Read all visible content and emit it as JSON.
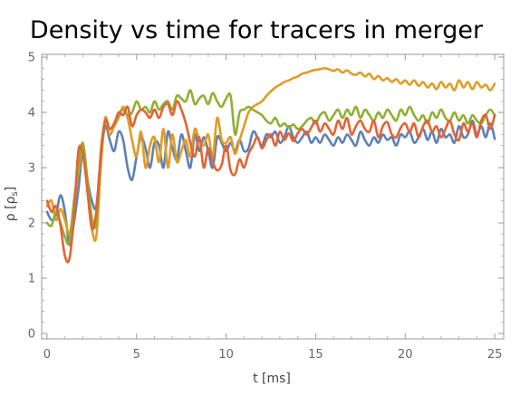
{
  "chart_data": {
    "type": "line",
    "title": "Density vs time for tracers in merger",
    "xlabel": "t [ms]",
    "ylabel": "ρ [ρs]",
    "ylabel_main": "ρ [ρ",
    "ylabel_sub": "s",
    "ylabel_end": "]",
    "xlim": [
      -0.3,
      25.5
    ],
    "ylim": [
      -0.1,
      5.05
    ],
    "xticks": [
      0,
      5,
      10,
      15,
      20,
      25
    ],
    "yticks": [
      0,
      1,
      2,
      3,
      4,
      5
    ],
    "xtick_labels": [
      "0",
      "5",
      "10",
      "15",
      "20",
      "25"
    ],
    "ytick_labels": [
      "0",
      "1",
      "2",
      "3",
      "4",
      "5"
    ],
    "grid": false,
    "series": [
      {
        "color": "#5E81B5",
        "x": [
          0,
          0.25,
          0.5,
          0.75,
          1,
          1.25,
          1.5,
          1.75,
          2,
          2.25,
          2.5,
          2.75,
          3,
          3.25,
          3.5,
          3.75,
          4,
          4.25,
          4.5,
          4.75,
          5,
          5.25,
          5.5,
          5.75,
          6,
          6.25,
          6.5,
          6.75,
          7,
          7.25,
          7.5,
          7.75,
          8,
          8.25,
          8.5,
          8.75,
          9,
          9.25,
          9.5,
          9.75,
          10,
          10.25,
          10.5,
          10.75,
          11,
          11.25,
          11.5,
          11.75,
          12,
          12.25,
          12.5,
          12.75,
          13,
          13.25,
          13.5,
          13.75,
          14,
          14.25,
          14.5,
          14.75,
          15,
          15.25,
          15.5,
          15.75,
          16,
          16.25,
          16.5,
          16.75,
          17,
          17.25,
          17.5,
          17.75,
          18,
          18.25,
          18.5,
          18.75,
          19,
          19.25,
          19.5,
          19.75,
          20,
          20.25,
          20.5,
          20.75,
          21,
          21.25,
          21.5,
          21.75,
          22,
          22.25,
          22.5,
          22.75,
          23,
          23.25,
          23.5,
          23.75,
          24,
          24.25,
          24.5,
          24.75,
          25
        ],
        "y": [
          2.2,
          2.05,
          2.15,
          2.5,
          2.2,
          1.6,
          2.0,
          2.6,
          3.3,
          2.8,
          2.4,
          2.3,
          3.2,
          3.75,
          3.5,
          3.3,
          3.65,
          3.5,
          3.0,
          2.78,
          3.2,
          3.55,
          3.35,
          3.0,
          3.45,
          3.4,
          3.0,
          3.65,
          3.35,
          3.15,
          3.6,
          3.3,
          3.0,
          3.6,
          3.3,
          3.55,
          3.3,
          3.0,
          3.55,
          3.45,
          3.3,
          3.45,
          3.3,
          3.5,
          3.3,
          3.35,
          3.65,
          3.55,
          3.4,
          3.6,
          3.55,
          3.65,
          3.45,
          3.55,
          3.75,
          3.55,
          3.45,
          3.55,
          3.65,
          3.45,
          3.55,
          3.45,
          3.6,
          3.5,
          3.4,
          3.55,
          3.45,
          3.6,
          3.5,
          3.4,
          3.65,
          3.5,
          3.4,
          3.55,
          3.45,
          3.6,
          3.5,
          3.55,
          3.4,
          3.6,
          3.55,
          3.65,
          3.45,
          3.55,
          3.7,
          3.5,
          3.65,
          3.45,
          3.7,
          3.55,
          3.6,
          3.45,
          3.75,
          3.55,
          3.6,
          3.85,
          3.6,
          3.75,
          3.55,
          3.8,
          3.52
        ]
      },
      {
        "color": "#E19C24",
        "x": [
          0,
          0.25,
          0.5,
          0.75,
          1,
          1.25,
          1.5,
          1.75,
          2,
          2.25,
          2.5,
          2.75,
          3,
          3.25,
          3.5,
          3.75,
          4,
          4.25,
          4.5,
          4.75,
          5,
          5.25,
          5.5,
          5.75,
          6,
          6.25,
          6.5,
          6.75,
          7,
          7.25,
          7.5,
          7.75,
          8,
          8.25,
          8.5,
          8.75,
          9,
          9.25,
          9.5,
          9.75,
          10,
          10.25,
          10.5,
          10.75,
          11,
          11.25,
          11.5,
          11.75,
          12,
          12.25,
          12.5,
          12.75,
          13,
          13.25,
          13.5,
          13.75,
          14,
          14.25,
          14.5,
          14.75,
          15,
          15.25,
          15.5,
          15.75,
          16,
          16.25,
          16.5,
          16.75,
          17,
          17.25,
          17.5,
          17.75,
          18,
          18.25,
          18.5,
          18.75,
          19,
          19.25,
          19.5,
          19.75,
          20,
          20.25,
          20.5,
          20.75,
          21,
          21.25,
          21.5,
          21.75,
          22,
          22.25,
          22.5,
          22.75,
          23,
          23.25,
          23.5,
          23.75,
          24,
          24.25,
          24.5,
          24.75,
          25
        ],
        "y": [
          2.3,
          2.4,
          2.05,
          2.25,
          2.05,
          1.8,
          2.3,
          2.9,
          3.35,
          2.6,
          1.9,
          1.75,
          3.0,
          3.9,
          3.6,
          3.75,
          3.9,
          4.1,
          3.9,
          3.5,
          3.2,
          3.65,
          3.0,
          3.4,
          3.55,
          3.1,
          3.7,
          3.0,
          3.6,
          3.1,
          3.3,
          3.5,
          3.2,
          3.7,
          3.5,
          3.4,
          3.6,
          3.2,
          3.9,
          3.5,
          3.45,
          3.55,
          3.25,
          3.5,
          3.75,
          4.0,
          4.1,
          4.15,
          4.2,
          4.3,
          4.38,
          4.45,
          4.5,
          4.55,
          4.58,
          4.62,
          4.65,
          4.7,
          4.72,
          4.75,
          4.77,
          4.78,
          4.8,
          4.78,
          4.75,
          4.78,
          4.72,
          4.76,
          4.7,
          4.68,
          4.72,
          4.65,
          4.7,
          4.6,
          4.66,
          4.58,
          4.62,
          4.55,
          4.6,
          4.52,
          4.58,
          4.5,
          4.58,
          4.48,
          4.55,
          4.45,
          4.52,
          4.42,
          4.55,
          4.45,
          4.52,
          4.4,
          4.58,
          4.45,
          4.55,
          4.42,
          4.55,
          4.45,
          4.5,
          4.4,
          4.52
        ]
      },
      {
        "color": "#8FB032",
        "x": [
          0,
          0.25,
          0.5,
          0.75,
          1,
          1.25,
          1.5,
          1.75,
          2,
          2.25,
          2.5,
          2.75,
          3,
          3.25,
          3.5,
          3.75,
          4,
          4.25,
          4.5,
          4.75,
          5,
          5.25,
          5.5,
          5.75,
          6,
          6.25,
          6.5,
          6.75,
          7,
          7.25,
          7.5,
          7.75,
          8,
          8.25,
          8.5,
          8.75,
          9,
          9.25,
          9.5,
          9.75,
          10,
          10.25,
          10.5,
          10.75,
          11,
          11.25,
          11.5,
          11.75,
          12,
          12.25,
          12.5,
          12.75,
          13,
          13.25,
          13.5,
          13.75,
          14,
          14.25,
          14.5,
          14.75,
          15,
          15.25,
          15.5,
          15.75,
          16,
          16.25,
          16.5,
          16.75,
          17,
          17.25,
          17.5,
          17.75,
          18,
          18.25,
          18.5,
          18.75,
          19,
          19.25,
          19.5,
          19.75,
          20,
          20.25,
          20.5,
          20.75,
          21,
          21.25,
          21.5,
          21.75,
          22,
          22.25,
          22.5,
          22.75,
          23,
          23.25,
          23.5,
          23.75,
          24,
          24.25,
          24.5,
          24.75,
          25
        ],
        "y": [
          2.0,
          1.95,
          2.2,
          2.0,
          1.75,
          1.65,
          2.4,
          3.0,
          3.45,
          2.8,
          2.1,
          2.0,
          3.3,
          3.85,
          3.7,
          3.8,
          3.95,
          4.05,
          3.95,
          4.0,
          4.2,
          4.05,
          4.1,
          4.0,
          4.2,
          4.05,
          4.15,
          4.2,
          4.05,
          4.3,
          4.25,
          4.2,
          4.4,
          4.15,
          4.25,
          4.3,
          4.15,
          4.35,
          4.2,
          4.1,
          4.25,
          4.3,
          3.6,
          4.0,
          4.05,
          4.1,
          4.05,
          4.0,
          3.95,
          3.85,
          3.8,
          3.9,
          3.75,
          3.8,
          3.72,
          3.78,
          3.7,
          3.75,
          3.85,
          3.9,
          3.8,
          3.95,
          4.0,
          3.85,
          3.95,
          4.05,
          3.9,
          4.05,
          3.95,
          4.1,
          3.9,
          4.05,
          3.95,
          3.85,
          4.0,
          3.9,
          4.05,
          3.95,
          3.85,
          4.05,
          3.95,
          4.1,
          3.95,
          3.85,
          3.95,
          3.8,
          4.0,
          3.9,
          4.05,
          3.9,
          3.85,
          4.0,
          3.85,
          3.95,
          3.8,
          3.95,
          3.85,
          3.8,
          3.95,
          4.05,
          3.95
        ]
      },
      {
        "color": "#E56333",
        "x": [
          0,
          0.25,
          0.5,
          0.75,
          1,
          1.25,
          1.5,
          1.75,
          2,
          2.25,
          2.5,
          2.75,
          3,
          3.25,
          3.5,
          3.75,
          4,
          4.25,
          4.5,
          4.75,
          5,
          5.25,
          5.5,
          5.75,
          6,
          6.25,
          6.5,
          6.75,
          7,
          7.25,
          7.5,
          7.75,
          8,
          8.25,
          8.5,
          8.75,
          9,
          9.25,
          9.5,
          9.75,
          10,
          10.25,
          10.5,
          10.75,
          11,
          11.25,
          11.5,
          11.75,
          12,
          12.25,
          12.5,
          12.75,
          13,
          13.25,
          13.5,
          13.75,
          14,
          14.25,
          14.5,
          14.75,
          15,
          15.25,
          15.5,
          15.75,
          16,
          16.25,
          16.5,
          16.75,
          17,
          17.25,
          17.5,
          17.75,
          18,
          18.25,
          18.5,
          18.75,
          19,
          19.25,
          19.5,
          19.75,
          20,
          20.25,
          20.5,
          20.75,
          21,
          21.25,
          21.5,
          21.75,
          22,
          22.25,
          22.5,
          22.75,
          23,
          23.25,
          23.5,
          23.75,
          24,
          24.25,
          24.5,
          24.75,
          25
        ],
        "y": [
          2.4,
          2.2,
          2.3,
          1.95,
          1.4,
          1.35,
          2.1,
          3.3,
          3.25,
          2.6,
          1.9,
          2.2,
          3.2,
          3.85,
          3.7,
          3.8,
          4.0,
          3.95,
          4.1,
          3.75,
          3.95,
          4.05,
          4.0,
          3.9,
          4.05,
          3.9,
          4.1,
          4.15,
          3.95,
          4.2,
          4.05,
          3.8,
          3.45,
          3.2,
          3.55,
          3.0,
          3.35,
          3.1,
          2.95,
          3.05,
          3.4,
          2.95,
          2.88,
          3.15,
          3.0,
          3.25,
          3.4,
          3.55,
          3.35,
          3.5,
          3.6,
          3.4,
          3.65,
          3.5,
          3.62,
          3.48,
          3.62,
          3.7,
          3.6,
          3.72,
          3.85,
          3.65,
          3.8,
          3.7,
          3.6,
          3.85,
          3.7,
          3.9,
          3.6,
          3.75,
          3.85,
          3.7,
          3.65,
          3.85,
          3.55,
          3.75,
          3.82,
          3.6,
          3.55,
          3.72,
          3.8,
          3.65,
          3.8,
          3.55,
          3.75,
          3.85,
          3.65,
          3.75,
          3.55,
          3.7,
          3.85,
          3.6,
          3.5,
          3.8,
          3.65,
          3.8,
          3.55,
          3.85,
          3.95,
          3.7,
          3.95
        ]
      }
    ]
  }
}
